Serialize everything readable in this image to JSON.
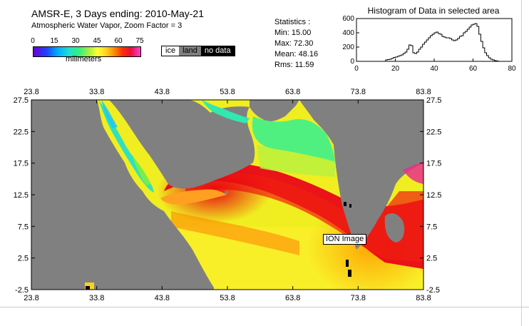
{
  "header": {
    "title": "AMSR-E, 3 Days ending: 2010-May-21",
    "subtitle": "Atmospheric Water Vapor,  Zoom Factor = 3"
  },
  "colorbar": {
    "ticks": [
      "0",
      "15",
      "30",
      "45",
      "60",
      "75"
    ],
    "unit": "milimeters"
  },
  "legend": {
    "ice": "ice",
    "land": "land",
    "no_data": "no data"
  },
  "statistics": {
    "heading": "Statistics :",
    "min": "Min: 15.00",
    "max": "Max: 72.30",
    "mean": "Mean:  48.16",
    "rms": "Rms:   11.59"
  },
  "chart_data": {
    "type": "line",
    "title": "Histogram of Data in selected area",
    "xlabel": "",
    "ylabel": "",
    "xlim": [
      0,
      80
    ],
    "ylim": [
      0,
      600
    ],
    "x_ticks": [
      "0",
      "20",
      "40",
      "60",
      "80"
    ],
    "y_ticks": [
      "0",
      "200",
      "400",
      "600"
    ],
    "x": [
      15,
      16,
      17,
      18,
      19,
      20,
      21,
      22,
      23,
      24,
      25,
      26,
      27,
      28,
      29,
      30,
      31,
      32,
      33,
      34,
      35,
      36,
      37,
      38,
      39,
      40,
      41,
      42,
      43,
      44,
      45,
      46,
      47,
      48,
      49,
      50,
      51,
      52,
      53,
      54,
      55,
      56,
      57,
      58,
      59,
      60,
      61,
      62,
      63,
      64,
      65,
      66,
      67,
      68,
      69,
      70,
      71,
      72
    ],
    "values": [
      20,
      25,
      30,
      40,
      55,
      60,
      70,
      80,
      90,
      110,
      130,
      170,
      230,
      220,
      120,
      110,
      130,
      170,
      200,
      240,
      270,
      300,
      330,
      360,
      380,
      400,
      410,
      390,
      380,
      350,
      340,
      330,
      330,
      320,
      300,
      290,
      300,
      320,
      350,
      360,
      400,
      420,
      450,
      480,
      510,
      520,
      530,
      490,
      380,
      280,
      190,
      120,
      80,
      50,
      30,
      20,
      10,
      5
    ]
  },
  "map": {
    "lon_ticks": [
      "23.8",
      "33.8",
      "43.8",
      "53.8",
      "63.8",
      "73.8",
      "83.8"
    ],
    "lat_ticks": [
      "27.5",
      "22.5",
      "17.5",
      "12.5",
      "7.5",
      "2.5",
      "-2.5"
    ],
    "label": "ION Image"
  }
}
